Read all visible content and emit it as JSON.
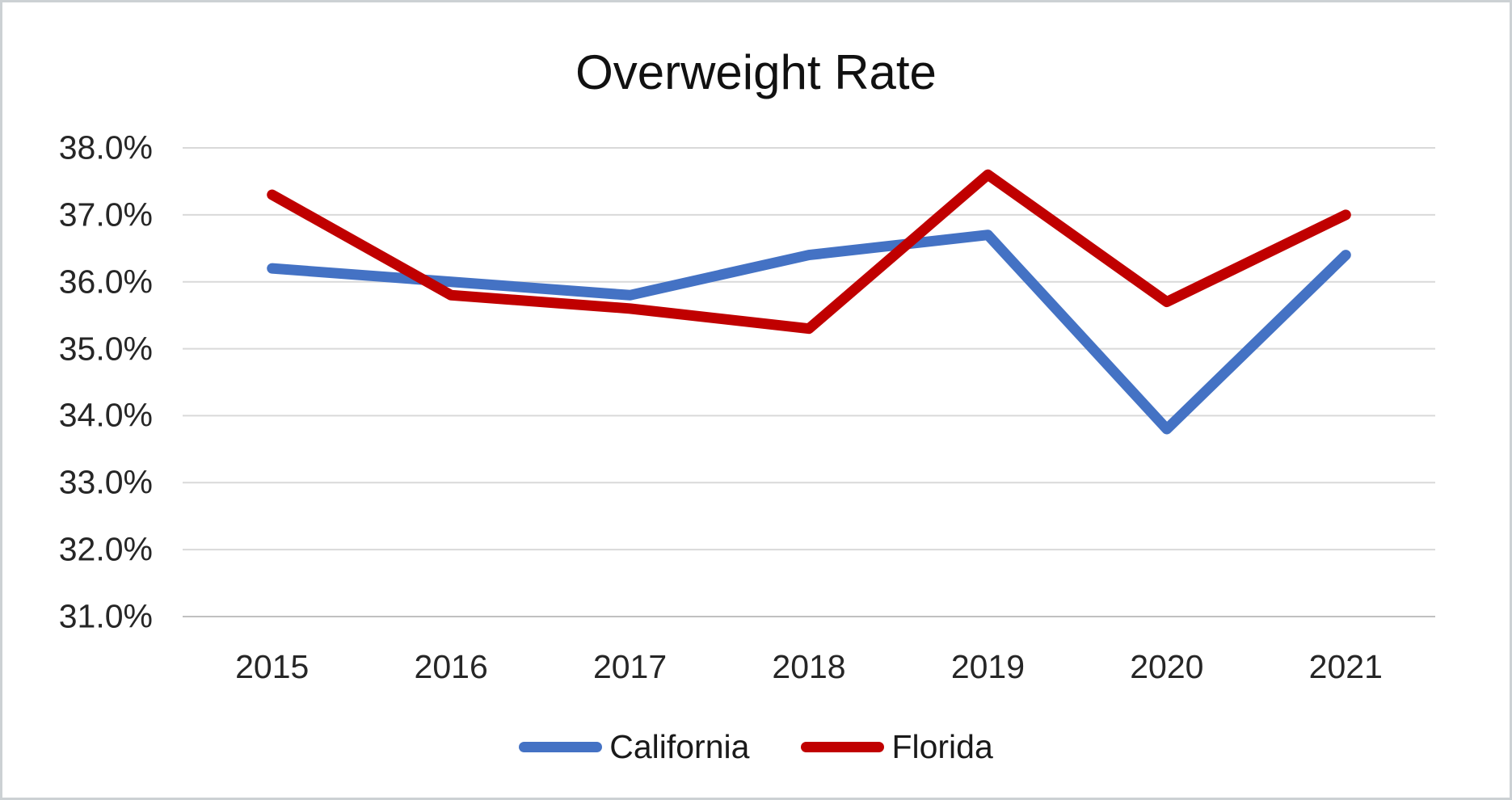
{
  "chart_data": {
    "type": "line",
    "title": "Overweight Rate",
    "x": [
      "2015",
      "2016",
      "2017",
      "2018",
      "2019",
      "2020",
      "2021"
    ],
    "series": [
      {
        "name": "California",
        "color": "#4472C4",
        "values": [
          36.2,
          36.0,
          35.8,
          36.4,
          36.7,
          33.8,
          36.4
        ]
      },
      {
        "name": "Florida",
        "color": "#C00000",
        "values": [
          37.3,
          35.8,
          35.6,
          35.3,
          37.6,
          35.7,
          37.0
        ]
      }
    ],
    "unit": "%",
    "ylim": [
      31.0,
      38.0
    ],
    "y_tick_step": 1.0,
    "y_tick_labels": [
      "38.0%",
      "37.0%",
      "36.0%",
      "35.0%",
      "34.0%",
      "33.0%",
      "32.0%",
      "31.0%"
    ],
    "grid": true,
    "legend_position": "bottom"
  },
  "colors": {
    "gridline": "#D9D9D9",
    "axis_line": "#C0C0C0",
    "tick_label": "#262626",
    "title": "#111111",
    "california_line": "#4472C4",
    "florida_line": "#C00000"
  }
}
